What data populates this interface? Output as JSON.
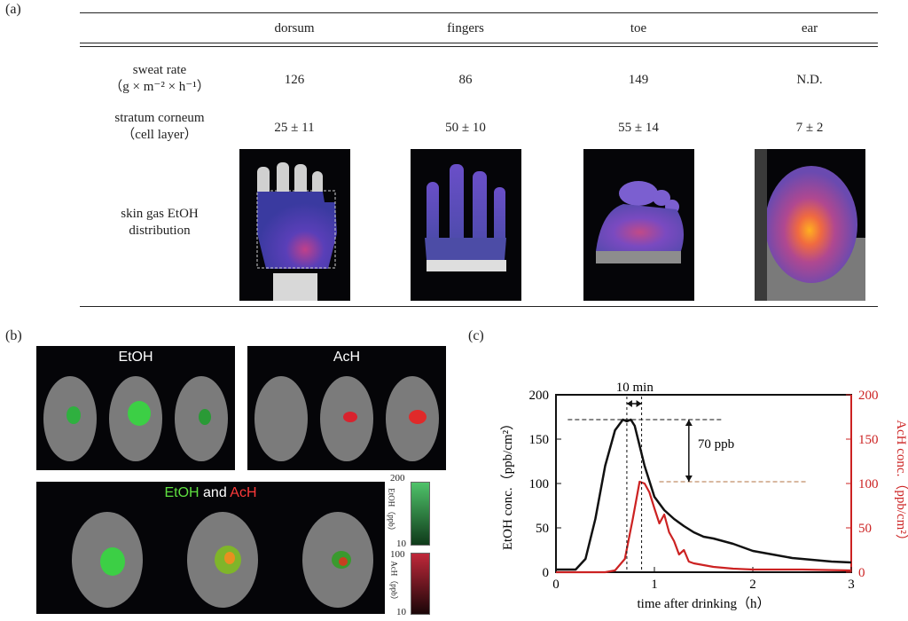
{
  "panels": {
    "a": "(a)",
    "b": "(b)",
    "c": "(c)"
  },
  "table": {
    "columns": [
      "dorsum",
      "fingers",
      "toe",
      "ear"
    ],
    "rows": [
      {
        "label_line1": "sweat rate",
        "label_line2": "（g × m⁻² × h⁻¹）",
        "values": [
          "126",
          "86",
          "149",
          "N.D."
        ]
      },
      {
        "label_line1": "stratum corneum",
        "label_line2": "（cell layer）",
        "values": [
          "25 ± 11",
          "50 ± 10",
          "55 ± 14",
          "7 ± 2"
        ]
      }
    ],
    "image_row_label_line1": "skin gas EtOH",
    "image_row_label_line2": "distribution"
  },
  "panel_b": {
    "etoh_title": "EtOH",
    "ach_title": "AcH",
    "combined_title_etoh": "EtOH",
    "combined_title_and": "and",
    "combined_title_ach": "AcH",
    "scale_etoh": {
      "max": "200",
      "min": "10",
      "label": "EtOH（ppb）",
      "color": "#3fae5a"
    },
    "scale_ach": {
      "max": "100",
      "min": "10",
      "label": "AcH（ppb）",
      "color": "#c0283a"
    }
  },
  "chart_data": {
    "type": "line",
    "xlabel": "time after drinking（h）",
    "ylabel_left": "EtOH conc.（ppb/cm²）",
    "ylabel_right": "AcH conc.（ppb/cm²）",
    "xlim": [
      0,
      3
    ],
    "ylim_left": [
      0,
      200
    ],
    "ylim_right": [
      0,
      200
    ],
    "x_ticks": [
      "0",
      "1",
      "2",
      "3"
    ],
    "y_ticks_left": [
      "0",
      "50",
      "100",
      "150",
      "200"
    ],
    "y_ticks_right": [
      "0",
      "50",
      "100",
      "150",
      "200"
    ],
    "annotation_time": "10 min",
    "annotation_diff": "70 ppb",
    "series": [
      {
        "color": "#111111",
        "axis": "left",
        "x": [
          0,
          0.2,
          0.3,
          0.4,
          0.5,
          0.6,
          0.68,
          0.72,
          0.76,
          0.8,
          0.9,
          1.0,
          1.1,
          1.2,
          1.3,
          1.4,
          1.5,
          1.6,
          1.7,
          1.8,
          1.9,
          2.0,
          2.2,
          2.4,
          2.6,
          2.8,
          3.0
        ],
        "y": [
          3,
          3,
          15,
          60,
          120,
          160,
          172,
          170,
          172,
          165,
          120,
          85,
          70,
          60,
          52,
          45,
          40,
          38,
          35,
          32,
          28,
          24,
          20,
          16,
          14,
          12,
          11
        ]
      },
      {
        "color": "#cc2222",
        "axis": "right",
        "x": [
          0,
          0.5,
          0.6,
          0.7,
          0.78,
          0.85,
          0.9,
          0.95,
          1.0,
          1.05,
          1.1,
          1.15,
          1.2,
          1.25,
          1.3,
          1.35,
          1.4,
          1.5,
          1.6,
          1.8,
          2.0,
          2.5,
          3.0
        ],
        "y": [
          0,
          0,
          2,
          15,
          60,
          102,
          100,
          90,
          72,
          55,
          65,
          45,
          35,
          20,
          25,
          12,
          10,
          8,
          6,
          4,
          3,
          3,
          2
        ]
      }
    ]
  }
}
